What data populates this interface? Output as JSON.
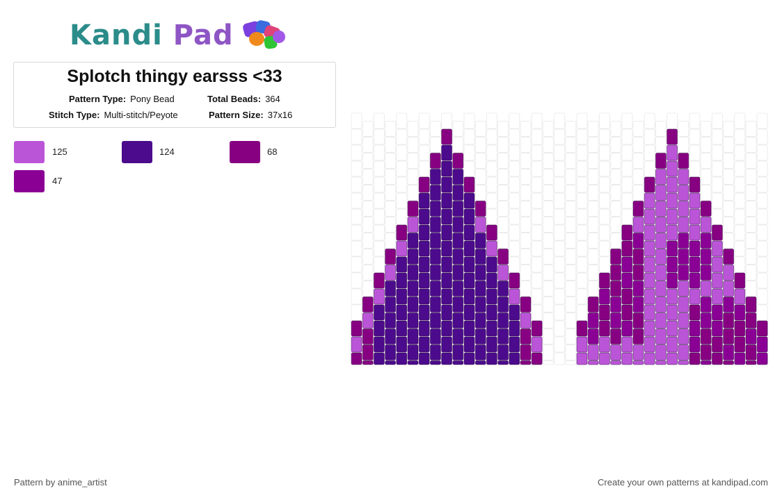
{
  "logo": {
    "kandi": "Kandi",
    "pad": "Pad"
  },
  "pattern": {
    "title": "Splotch thingy earsss <33",
    "type_label": "Pattern Type:",
    "type_value": "Pony Bead",
    "beads_label": "Total Beads:",
    "beads_value": "364",
    "stitch_label": "Stitch Type:",
    "stitch_value": "Multi-stitch/Peyote",
    "size_label": "Pattern Size:",
    "size_value": "37x16"
  },
  "palette": [
    {
      "color": "#bb55d8",
      "count": "125"
    },
    {
      "color": "#4b0b8c",
      "count": "124"
    },
    {
      "color": "#870082",
      "count": "68"
    },
    {
      "color": "#8a0094",
      "count": "47"
    }
  ],
  "footer": {
    "author": "Pattern by anime_artist",
    "cta": "Create your own patterns at kandipad.com"
  }
}
